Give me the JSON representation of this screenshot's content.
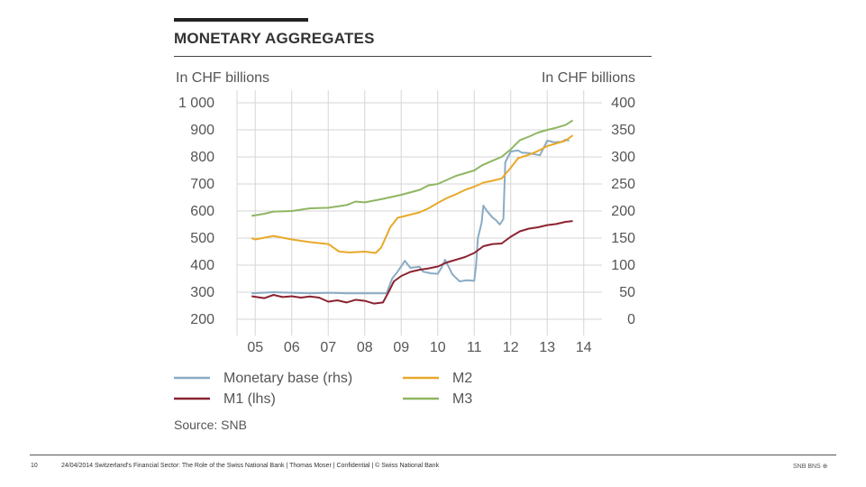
{
  "slide": {
    "title": "MONETARY AGGREGATES",
    "source": "Source: SNB",
    "page_number": "10",
    "footer": "24/04/2014 Switzerland's Financial Sector: The Role of the Swiss National Bank | Thomas Moser | Confidential | © Swiss National Bank",
    "logo_text": "SNB BNS ⊕"
  },
  "chart_data": {
    "type": "line",
    "left_axis": {
      "title": "In CHF billions",
      "min": 200,
      "max": 1000,
      "ticks": [
        "1 000",
        "900",
        "800",
        "700",
        "600",
        "500",
        "400",
        "300",
        "200"
      ]
    },
    "right_axis": {
      "title": "In CHF billions",
      "min": 0,
      "max": 400,
      "ticks": [
        "400",
        "350",
        "300",
        "250",
        "200",
        "150",
        "100",
        "50",
        "0"
      ]
    },
    "x_tick_labels": [
      "05",
      "06",
      "07",
      "08",
      "09",
      "10",
      "11",
      "12",
      "13",
      "14"
    ],
    "grid": true,
    "legend_position": "bottom",
    "colors": {
      "monetary_base": "#8aabc4",
      "m1": "#8b2331",
      "m2": "#e8a92a",
      "m3": "#8fb662"
    },
    "series": [
      {
        "name": "Monetary base (rhs)",
        "axis": "right",
        "points": [
          [
            2004.9,
            48
          ],
          [
            2005.5,
            50
          ],
          [
            2006.0,
            49
          ],
          [
            2006.5,
            48
          ],
          [
            2007.0,
            49
          ],
          [
            2007.5,
            48
          ],
          [
            2008.0,
            48
          ],
          [
            2008.4,
            48
          ],
          [
            2008.6,
            48
          ],
          [
            2008.75,
            75
          ],
          [
            2008.9,
            88
          ],
          [
            2009.1,
            108
          ],
          [
            2009.25,
            95
          ],
          [
            2009.5,
            97
          ],
          [
            2009.6,
            88
          ],
          [
            2009.8,
            85
          ],
          [
            2010.0,
            84
          ],
          [
            2010.1,
            95
          ],
          [
            2010.2,
            110
          ],
          [
            2010.4,
            83
          ],
          [
            2010.6,
            70
          ],
          [
            2010.8,
            72
          ],
          [
            2011.0,
            71
          ],
          [
            2011.05,
            100
          ],
          [
            2011.1,
            150
          ],
          [
            2011.2,
            178
          ],
          [
            2011.25,
            210
          ],
          [
            2011.35,
            200
          ],
          [
            2011.5,
            188
          ],
          [
            2011.6,
            183
          ],
          [
            2011.7,
            175
          ],
          [
            2011.8,
            185
          ],
          [
            2011.85,
            290
          ],
          [
            2012.0,
            310
          ],
          [
            2012.2,
            312
          ],
          [
            2012.3,
            308
          ],
          [
            2012.5,
            307
          ],
          [
            2012.8,
            303
          ],
          [
            2013.0,
            330
          ],
          [
            2013.2,
            327
          ],
          [
            2013.4,
            328
          ],
          [
            2013.5,
            332
          ],
          [
            2013.6,
            330
          ]
        ]
      },
      {
        "name": "M2",
        "axis": "left",
        "points": [
          [
            2004.9,
            500
          ],
          [
            2005.0,
            495
          ],
          [
            2005.5,
            508
          ],
          [
            2006.0,
            495
          ],
          [
            2006.5,
            485
          ],
          [
            2007.0,
            478
          ],
          [
            2007.3,
            450
          ],
          [
            2007.6,
            447
          ],
          [
            2008.0,
            450
          ],
          [
            2008.3,
            445
          ],
          [
            2008.45,
            465
          ],
          [
            2008.7,
            540
          ],
          [
            2008.9,
            575
          ],
          [
            2009.2,
            585
          ],
          [
            2009.5,
            595
          ],
          [
            2009.75,
            610
          ],
          [
            2010.0,
            630
          ],
          [
            2010.25,
            648
          ],
          [
            2010.5,
            662
          ],
          [
            2010.75,
            678
          ],
          [
            2011.0,
            690
          ],
          [
            2011.25,
            705
          ],
          [
            2011.5,
            712
          ],
          [
            2011.75,
            720
          ],
          [
            2012.0,
            760
          ],
          [
            2012.2,
            795
          ],
          [
            2012.5,
            808
          ],
          [
            2012.75,
            822
          ],
          [
            2013.0,
            840
          ],
          [
            2013.25,
            850
          ],
          [
            2013.5,
            860
          ],
          [
            2013.7,
            880
          ]
        ]
      },
      {
        "name": "M1 (lhs)",
        "axis": "left",
        "points": [
          [
            2004.9,
            285
          ],
          [
            2005.25,
            278
          ],
          [
            2005.5,
            290
          ],
          [
            2005.75,
            282
          ],
          [
            2006.0,
            285
          ],
          [
            2006.25,
            280
          ],
          [
            2006.5,
            284
          ],
          [
            2006.75,
            280
          ],
          [
            2007.0,
            265
          ],
          [
            2007.25,
            270
          ],
          [
            2007.5,
            262
          ],
          [
            2007.75,
            272
          ],
          [
            2008.0,
            268
          ],
          [
            2008.25,
            258
          ],
          [
            2008.5,
            262
          ],
          [
            2008.65,
            300
          ],
          [
            2008.8,
            340
          ],
          [
            2009.0,
            360
          ],
          [
            2009.25,
            375
          ],
          [
            2009.5,
            383
          ],
          [
            2009.75,
            388
          ],
          [
            2010.0,
            395
          ],
          [
            2010.25,
            410
          ],
          [
            2010.5,
            420
          ],
          [
            2010.75,
            430
          ],
          [
            2011.0,
            445
          ],
          [
            2011.25,
            470
          ],
          [
            2011.5,
            478
          ],
          [
            2011.75,
            480
          ],
          [
            2012.0,
            505
          ],
          [
            2012.25,
            525
          ],
          [
            2012.5,
            535
          ],
          [
            2012.75,
            540
          ],
          [
            2013.0,
            548
          ],
          [
            2013.25,
            552
          ],
          [
            2013.5,
            560
          ],
          [
            2013.7,
            563
          ]
        ]
      },
      {
        "name": "M3",
        "axis": "left",
        "points": [
          [
            2004.9,
            582
          ],
          [
            2005.25,
            590
          ],
          [
            2005.5,
            598
          ],
          [
            2006.0,
            600
          ],
          [
            2006.5,
            610
          ],
          [
            2007.0,
            612
          ],
          [
            2007.5,
            622
          ],
          [
            2007.75,
            635
          ],
          [
            2008.0,
            632
          ],
          [
            2008.5,
            645
          ],
          [
            2009.0,
            660
          ],
          [
            2009.5,
            678
          ],
          [
            2009.75,
            695
          ],
          [
            2010.0,
            700
          ],
          [
            2010.5,
            730
          ],
          [
            2011.0,
            750
          ],
          [
            2011.2,
            768
          ],
          [
            2011.5,
            786
          ],
          [
            2011.75,
            800
          ],
          [
            2012.0,
            828
          ],
          [
            2012.25,
            862
          ],
          [
            2012.5,
            875
          ],
          [
            2012.75,
            890
          ],
          [
            2013.0,
            900
          ],
          [
            2013.25,
            908
          ],
          [
            2013.5,
            918
          ],
          [
            2013.7,
            935
          ]
        ]
      }
    ]
  }
}
